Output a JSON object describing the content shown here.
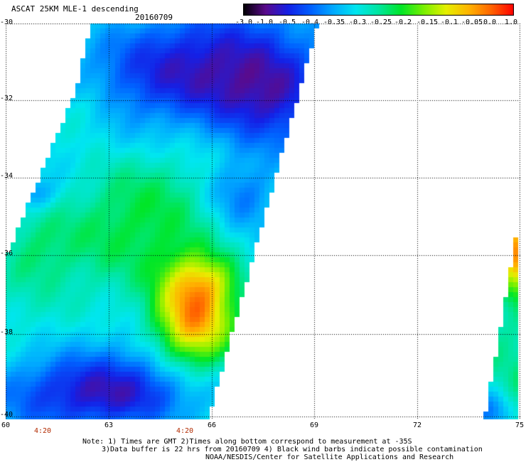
{
  "header": {
    "title": "ASCAT 25KM MLE-1 descending",
    "date": "20160709"
  },
  "colorbar": {
    "labels": [
      "-3.0",
      "-1.0",
      "-0.5",
      "-0.4",
      "-0.35",
      "-0.3",
      "-0.25",
      "-0.2",
      "-0.15",
      "-0.1",
      "-0.05",
      "0.0",
      "1.0"
    ],
    "colors": [
      "#000000",
      "#5a0a8c",
      "#1420e6",
      "#0060ff",
      "#00aaff",
      "#00e6f0",
      "#00e6a0",
      "#00e628",
      "#78f000",
      "#e6f000",
      "#ffb400",
      "#ff6400",
      "#ff0000"
    ]
  },
  "axes": {
    "lat_labels": [
      "-30",
      "-32",
      "-34",
      "-36",
      "-38",
      "-40"
    ],
    "lon_labels": [
      "60",
      "63",
      "66",
      "69",
      "72",
      "75"
    ],
    "lat_range": [
      -40,
      -30
    ],
    "lon_range": [
      60,
      75
    ]
  },
  "times": [
    "4:20",
    "4:20"
  ],
  "notes": {
    "line1": "Note: 1) Times are GMT 2)Times along bottom correspond to measurement at -35S",
    "line2": "3)Data buffer is 22 hrs from 20160709 4) Black wind barbs indicate possible contamination",
    "line3": "NOAA/NESDIS/Center for Satellite Applications and Research"
  },
  "map_data": {
    "swaths": [
      {
        "name": "main",
        "region": "60E-69E",
        "dominant": "mixed blue/cyan/green with orange maximum near 65E 37-38S"
      },
      {
        "name": "east",
        "region": "74E-75E",
        "dominant": "green/blue with orange near 36S"
      }
    ]
  }
}
